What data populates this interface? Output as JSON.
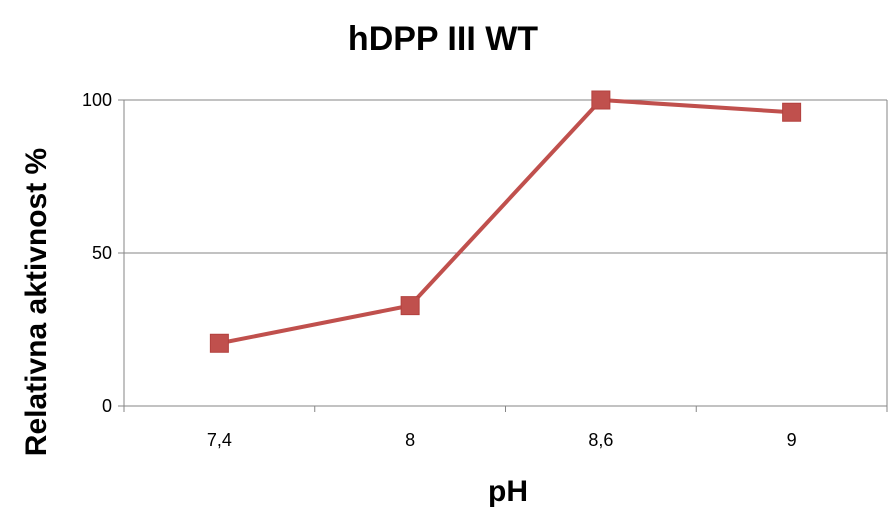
{
  "chart_data": {
    "type": "line",
    "title": "hDPP III WT",
    "xlabel": "pH",
    "ylabel": "Relativna aktivnost %",
    "categories": [
      "7,4",
      "8",
      "8,6",
      "9"
    ],
    "series": [
      {
        "values": [
          20.5,
          32.8,
          100,
          96
        ]
      }
    ],
    "ylim": [
      0,
      100
    ],
    "yticks": [
      "0",
      "50",
      "100"
    ],
    "grid": true,
    "legend": false,
    "colors": {
      "line": "#c0504d",
      "marker": "#c0504d",
      "grid": "#868686",
      "axis": "#868686"
    }
  }
}
